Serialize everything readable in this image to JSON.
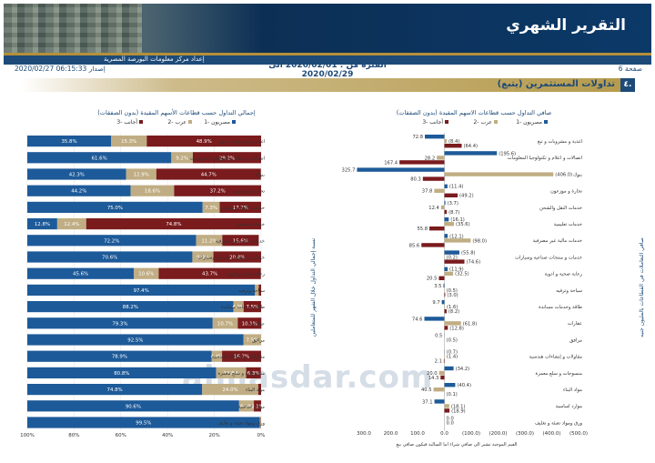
{
  "header": {
    "title": "التقرير الشهري",
    "org_label": "إعداد مركز معلومات البورصة المصرية",
    "page_label": "صفحة 6",
    "release_label": "إصدار 06:15:33 2020/02/27",
    "period": "الفترة من : 2020/02/01 الى 2020/02/29"
  },
  "section": {
    "number": "٤.",
    "title": "تداولات المستثمرين  (يتبع)"
  },
  "watermark": "almasdar.com",
  "colors": {
    "egyptians": "#1d5a99",
    "arabs": "#c0ad84",
    "foreigners": "#7a1b1d",
    "gold": "#b5903a",
    "navy": "#1d4a78"
  },
  "chart_data": [
    {
      "type": "bar",
      "orientation": "horizontal",
      "stacked": true,
      "title": "إجمالي التداول حسب قطاعات الأسهم المقيدة (بدون الصفقات)",
      "ylabel": "نسبة إجمالي التداول خلال الشهر للمتعاملين",
      "legend": [
        "مصريون -1",
        "عرب -2",
        "أجانب -3"
      ],
      "x_ticks": [
        "100%",
        "80%",
        "60%",
        "40%",
        "20%",
        "0%"
      ],
      "xlim": [
        0,
        100
      ],
      "categories": [
        "اغذية و مشروبات و تبغ",
        "اتصالات و اعلام و تكنولوجيا المعلومات",
        "بنوك",
        "تجارة و موزعون",
        "خدمات النقل والشحن",
        "خدمات تعليمية",
        "خدمات مالية غير مصرفية",
        "خدمات و منتجات صناعية وسيارات",
        "رعاية صحية و ادوية",
        "سياحة وترفيه",
        "طاقة وخدمات مساندة",
        "عقارات",
        "مرافق",
        "مقاولات و إنشاءات هندسية",
        "منسوجات و سلع معمرة",
        "مواد البناء",
        "موارد اساسية",
        "ورق ومواد تعبئة و تغليف"
      ],
      "series": [
        {
          "name": "مصريون -1",
          "values": [
            35.8,
            61.6,
            42.3,
            44.2,
            75.0,
            12.8,
            72.2,
            70.6,
            45.6,
            97.4,
            88.2,
            79.3,
            92.5,
            78.9,
            80.8,
            74.8,
            90.6,
            99.5
          ]
        },
        {
          "name": "عرب -2",
          "values": [
            15.3,
            9.2,
            12.9,
            18.6,
            7.3,
            12.4,
            11.2,
            9.0,
            10.6,
            1.6,
            4.3,
            10.7,
            7.5,
            4.4,
            12.8,
            24.0,
            6.3,
            0.4
          ]
        },
        {
          "name": "أجانب -3",
          "values": [
            48.9,
            29.2,
            44.7,
            37.2,
            17.7,
            74.8,
            15.6,
            20.4,
            43.7,
            1.0,
            7.5,
            10.1,
            0.0,
            16.7,
            6.3,
            1.2,
            3.1,
            0.1
          ]
        }
      ],
      "labels": [
        [
          "35.8%",
          "15.3%",
          "48.9%"
        ],
        [
          "61.6%",
          "9.2%",
          "29.2%"
        ],
        [
          "42.3%",
          "12.9%",
          "44.7%"
        ],
        [
          "44.2%",
          "18.6%",
          "37.2%"
        ],
        [
          "75.0%",
          "7.3%",
          "17.7%"
        ],
        [
          "12.8%",
          "12.4%",
          "74.8%"
        ],
        [
          "72.2%",
          "11.2%",
          "15.6%"
        ],
        [
          "70.6%",
          "9.0%",
          "20.4%"
        ],
        [
          "45.6%",
          "10.6%",
          "43.7%"
        ],
        [
          "97.4%",
          "",
          ""
        ],
        [
          "88.2%",
          "4.3%",
          "7.5%"
        ],
        [
          "79.3%",
          "10.7%",
          "10.1%"
        ],
        [
          "92.5%",
          "7.5%",
          ""
        ],
        [
          "78.9%",
          "4.4%",
          "16.7%"
        ],
        [
          "80.8%",
          "12.8%",
          "6.3%"
        ],
        [
          "74.8%",
          "24.0%",
          ""
        ],
        [
          "90.6%",
          "6.3%",
          "3.1%"
        ],
        [
          "99.5%",
          "",
          ""
        ]
      ]
    },
    {
      "type": "bar",
      "orientation": "horizontal",
      "stacked": false,
      "title": "صافي التداول حسب قطاعات الاسهم المقيدة (بدون الصفقات)",
      "ylabel": "صافي التعاملات في القطاعات بالمليون جنيه",
      "legend": [
        "مصريون -1",
        "عرب -2",
        "أجانب -3"
      ],
      "x_ticks": [
        "300.0",
        "200.0",
        "100.0",
        "0.0",
        "(100.0)",
        "(200.0)",
        "(300.0)",
        "(400.0)",
        "(500.0)"
      ],
      "xlim": [
        300,
        -500
      ],
      "footnote": "القيم الموجبة تشير الى صافي شراء اما السالبة فيكون صافي بيع",
      "categories": [
        "اغذية و مشروبات و تبغ",
        "اتصالات و اعلام و تكنولوجيا المعلومات",
        "بنوك",
        "تجارة و موزعون",
        "خدمات النقل والشحن",
        "خدمات تعليمية",
        "خدمات مالية غير مصرفية",
        "خدمات و منتجات صناعية وسيارات",
        "رعاية صحية و ادوية",
        "سياحة وترفيه",
        "طاقة وخدمات مساندة",
        "عقارات",
        "مرافق",
        "مقاولات و إنشاءات هندسية",
        "منسوجات و سلع معمرة",
        "مواد البناء",
        "موارد اساسية",
        "ورق ومواد تعبئة و تغليف"
      ],
      "series": [
        {
          "name": "مصريون -1",
          "values": [
            72.8,
            -195.6,
            325.7,
            -11.4,
            -3.7,
            -16.1,
            -12.1,
            -55.8,
            -11.9,
            3.5,
            9.7,
            74.6,
            0.5,
            -0.7,
            -34.2,
            -40.4,
            37.1,
            0.0
          ]
        },
        {
          "name": "عرب -2",
          "values": [
            -8.4,
            28.2,
            -406.0,
            37.8,
            12.4,
            -35.6,
            -98.0,
            -0.2,
            -32.5,
            -0.5,
            -1.6,
            -61.8,
            -0.5,
            -1.4,
            20.0,
            40.5,
            -18.1,
            0.0
          ]
        },
        {
          "name": "أجانب -3",
          "values": [
            -64.4,
            167.4,
            80.3,
            -49.2,
            -8.7,
            55.8,
            85.6,
            -74.6,
            20.5,
            -3.0,
            -8.2,
            -12.8,
            0.0,
            2.1,
            14.3,
            -0.1,
            -18.9,
            0.0
          ]
        }
      ],
      "labels": [
        [
          "72.8",
          "(8.4)",
          "(64.4)"
        ],
        [
          "(195.6)",
          "28.2",
          "167.4"
        ],
        [
          "325.7",
          "(406.0)",
          "80.3"
        ],
        [
          "(11.4)",
          "37.8",
          "(49.2)"
        ],
        [
          "(3.7)",
          "12.4",
          "(8.7)"
        ],
        [
          "(16.1)",
          "(35.6)",
          "55.8"
        ],
        [
          "(12.1)",
          "(98.0)",
          "85.6"
        ],
        [
          "(55.8)",
          "(0.2)",
          "(74.6)"
        ],
        [
          "(11.9)",
          "(32.5)",
          "20.5"
        ],
        [
          "3.5",
          "(0.5)",
          "(3.0)"
        ],
        [
          "9.7",
          "(1.6)",
          "(8.2)"
        ],
        [
          "74.6",
          "(61.8)",
          "(12.8)"
        ],
        [
          "0.5",
          "(0.5)",
          ""
        ],
        [
          "(0.7)",
          "(1.4)",
          "2.1"
        ],
        [
          "(34.2)",
          "20.0",
          "14.3"
        ],
        [
          "(40.4)",
          "40.5",
          "(0.1)"
        ],
        [
          "37.1",
          "(18.1)",
          "(18.9)"
        ],
        [
          "0.0",
          "0.0",
          ""
        ]
      ]
    }
  ]
}
